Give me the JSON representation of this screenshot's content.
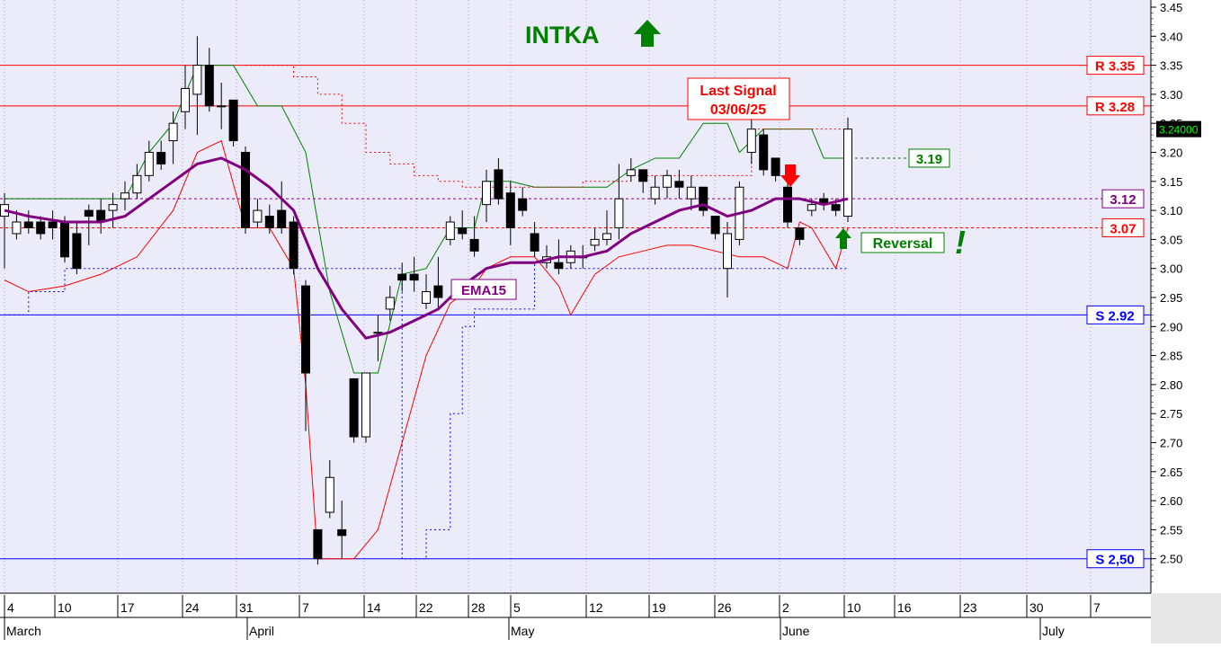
{
  "chart_data": {
    "type": "candlestick",
    "title": "INTKA",
    "trend_arrow": "up",
    "y_axis": {
      "ylim": [
        2.45,
        3.45
      ],
      "ticks": [
        "3.45",
        "3.40",
        "3.35",
        "3.30",
        "3.25",
        "3.20",
        "3.15",
        "3.10",
        "3.05",
        "3.00",
        "2.95",
        "2.90",
        "2.85",
        "2.80",
        "2.75",
        "2.70",
        "2.65",
        "2.60",
        "2.55",
        "2.50"
      ],
      "last_price_label": "3.24000"
    },
    "x_axis": {
      "day_ticks": [
        "4",
        "10",
        "17",
        "24",
        "31",
        "7",
        "14",
        "22",
        "28",
        "5",
        "12",
        "19",
        "26",
        "2",
        "10",
        "16",
        "23",
        "30",
        "7"
      ],
      "month_labels": [
        "March",
        "April",
        "May",
        "June",
        "July"
      ]
    },
    "levels": [
      {
        "label": "R 3.35",
        "value": 3.35,
        "kind": "resistance",
        "color": "#ff0000"
      },
      {
        "label": "R 3.28",
        "value": 3.28,
        "kind": "resistance",
        "color": "#ff0000"
      },
      {
        "label": "S 2.92",
        "value": 2.92,
        "kind": "support",
        "color": "#0000ff"
      },
      {
        "label": "S 2,50",
        "value": 2.5,
        "kind": "support",
        "color": "#0000ff"
      }
    ],
    "markers": [
      {
        "label": "3.19",
        "value": 3.19,
        "color": "#008000"
      },
      {
        "label": "3.12",
        "value": 3.12,
        "color": "#800080"
      },
      {
        "label": "3.07",
        "value": 3.07,
        "color": "#ff0000"
      }
    ],
    "annotations": {
      "last_signal": "Last Signal",
      "last_signal_date": "03/06/25",
      "ema_label": "EMA15",
      "reversal_label": "Reversal",
      "exclaim": "!"
    },
    "candles": [
      [
        0,
        3.09,
        3.11,
        3.0,
        3.13
      ],
      [
        1,
        3.06,
        3.08,
        3.05,
        3.1
      ],
      [
        2,
        3.08,
        3.07,
        3.06,
        3.1
      ],
      [
        3,
        3.08,
        3.06,
        3.05,
        3.09
      ],
      [
        4,
        3.08,
        3.07,
        3.05,
        3.1
      ],
      [
        5,
        3.08,
        3.02,
        3.01,
        3.09
      ],
      [
        6,
        3.06,
        3.0,
        2.99,
        3.08
      ],
      [
        7,
        3.1,
        3.09,
        3.04,
        3.11
      ],
      [
        8,
        3.1,
        3.08,
        3.06,
        3.12
      ],
      [
        9,
        3.1,
        3.11,
        3.07,
        3.13
      ],
      [
        10,
        3.12,
        3.13,
        3.1,
        3.15
      ],
      [
        11,
        3.13,
        3.16,
        3.12,
        3.18
      ],
      [
        12,
        3.16,
        3.2,
        3.15,
        3.22
      ],
      [
        13,
        3.2,
        3.18,
        3.17,
        3.22
      ],
      [
        14,
        3.22,
        3.25,
        3.18,
        3.27
      ],
      [
        15,
        3.27,
        3.31,
        3.24,
        3.35
      ],
      [
        16,
        3.3,
        3.35,
        3.23,
        3.4
      ],
      [
        17,
        3.35,
        3.28,
        3.27,
        3.38
      ],
      [
        18,
        3.28,
        3.28,
        3.24,
        3.32
      ],
      [
        19,
        3.29,
        3.22,
        3.21,
        3.29
      ],
      [
        20,
        3.2,
        3.07,
        3.06,
        3.21
      ],
      [
        21,
        3.08,
        3.1,
        3.07,
        3.12
      ],
      [
        22,
        3.09,
        3.07,
        3.06,
        3.11
      ],
      [
        23,
        3.1,
        3.07,
        3.06,
        3.15
      ],
      [
        24,
        3.08,
        3.0,
        2.99,
        3.09
      ],
      [
        25,
        2.97,
        2.82,
        2.72,
        2.98
      ],
      [
        26,
        2.55,
        2.5,
        2.49,
        2.55
      ],
      [
        27,
        2.58,
        2.64,
        2.57,
        2.67
      ],
      [
        28,
        2.55,
        2.54,
        2.5,
        2.6
      ],
      [
        29,
        2.81,
        2.71,
        2.7,
        2.81
      ],
      [
        30,
        2.71,
        2.82,
        2.7,
        2.82
      ],
      [
        31,
        2.89,
        2.89,
        2.84,
        2.92
      ],
      [
        32,
        2.93,
        2.95,
        2.91,
        2.97
      ],
      [
        33,
        2.99,
        2.98,
        2.96,
        3.01
      ],
      [
        34,
        2.99,
        2.98,
        2.96,
        3.02
      ],
      [
        35,
        2.94,
        2.96,
        2.93,
        2.99
      ],
      [
        36,
        2.97,
        2.95,
        2.93,
        3.02
      ],
      [
        37,
        3.05,
        3.08,
        3.04,
        3.09
      ],
      [
        38,
        3.07,
        3.06,
        3.05,
        3.1
      ],
      [
        39,
        3.05,
        3.03,
        3.02,
        3.09
      ],
      [
        40,
        3.11,
        3.15,
        3.08,
        3.17
      ],
      [
        41,
        3.17,
        3.12,
        3.11,
        3.19
      ],
      [
        42,
        3.13,
        3.07,
        3.04,
        3.15
      ],
      [
        43,
        3.12,
        3.1,
        3.09,
        3.14
      ],
      [
        44,
        3.06,
        3.03,
        3.02,
        3.08
      ],
      [
        45,
        3.01,
        3.02,
        3.0,
        3.04
      ],
      [
        46,
        3.01,
        3.0,
        2.99,
        3.05
      ],
      [
        47,
        3.01,
        3.03,
        3.0,
        3.04
      ],
      [
        48,
        3.02,
        3.02,
        3.0,
        3.04
      ],
      [
        49,
        3.04,
        3.05,
        3.03,
        3.07
      ],
      [
        50,
        3.05,
        3.06,
        3.04,
        3.1
      ],
      [
        51,
        3.07,
        3.12,
        3.05,
        3.18
      ],
      [
        52,
        3.16,
        3.17,
        3.15,
        3.19
      ],
      [
        53,
        3.17,
        3.15,
        3.13,
        3.17
      ],
      [
        54,
        3.12,
        3.14,
        3.11,
        3.16
      ],
      [
        55,
        3.14,
        3.16,
        3.12,
        3.17
      ],
      [
        56,
        3.15,
        3.14,
        3.12,
        3.17
      ],
      [
        57,
        3.12,
        3.14,
        3.1,
        3.16
      ],
      [
        58,
        3.14,
        3.1,
        3.09,
        3.14
      ],
      [
        59,
        3.09,
        3.06,
        3.05,
        3.09
      ],
      [
        60,
        3.0,
        3.06,
        2.95,
        3.08
      ],
      [
        61,
        3.05,
        3.14,
        3.04,
        3.15
      ],
      [
        62,
        3.2,
        3.24,
        3.18,
        3.26
      ],
      [
        63,
        3.23,
        3.17,
        3.16,
        3.24
      ],
      [
        64,
        3.19,
        3.16,
        3.15,
        3.19
      ],
      [
        65,
        3.14,
        3.08,
        3.07,
        3.17
      ],
      [
        66,
        3.07,
        3.05,
        3.04,
        3.07
      ],
      [
        67,
        3.1,
        3.11,
        3.09,
        3.12
      ],
      [
        68,
        3.12,
        3.11,
        3.1,
        3.13
      ],
      [
        69,
        3.11,
        3.1,
        3.09,
        3.12
      ],
      [
        70,
        3.09,
        3.24,
        3.08,
        3.26
      ]
    ],
    "ema15": [
      [
        0,
        3.1
      ],
      [
        2,
        3.09
      ],
      [
        5,
        3.08
      ],
      [
        8,
        3.08
      ],
      [
        10,
        3.09
      ],
      [
        12,
        3.12
      ],
      [
        14,
        3.15
      ],
      [
        16,
        3.18
      ],
      [
        18,
        3.19
      ],
      [
        20,
        3.17
      ],
      [
        22,
        3.14
      ],
      [
        24,
        3.1
      ],
      [
        26,
        3.0
      ],
      [
        28,
        2.93
      ],
      [
        30,
        2.88
      ],
      [
        32,
        2.89
      ],
      [
        34,
        2.91
      ],
      [
        36,
        2.93
      ],
      [
        38,
        2.97
      ],
      [
        40,
        3.0
      ],
      [
        42,
        3.01
      ],
      [
        44,
        3.01
      ],
      [
        46,
        3.02
      ],
      [
        48,
        3.02
      ],
      [
        50,
        3.03
      ],
      [
        52,
        3.06
      ],
      [
        54,
        3.08
      ],
      [
        56,
        3.1
      ],
      [
        58,
        3.11
      ],
      [
        60,
        3.09
      ],
      [
        62,
        3.1
      ],
      [
        64,
        3.12
      ],
      [
        66,
        3.12
      ],
      [
        68,
        3.11
      ],
      [
        70,
        3.12
      ]
    ],
    "upper_band": [
      [
        0,
        3.12
      ],
      [
        10,
        3.12
      ],
      [
        12,
        3.2
      ],
      [
        14,
        3.25
      ],
      [
        16,
        3.35
      ],
      [
        19,
        3.35
      ],
      [
        21,
        3.28
      ],
      [
        23,
        3.28
      ],
      [
        25,
        3.2
      ],
      [
        27,
        2.96
      ],
      [
        29,
        2.82
      ],
      [
        31,
        2.82
      ],
      [
        33,
        2.99
      ],
      [
        35,
        3.0
      ],
      [
        37,
        3.07
      ],
      [
        39,
        3.07
      ],
      [
        40,
        3.15
      ],
      [
        42,
        3.15
      ],
      [
        44,
        3.14
      ],
      [
        46,
        3.14
      ],
      [
        48,
        3.14
      ],
      [
        50,
        3.14
      ],
      [
        52,
        3.17
      ],
      [
        54,
        3.19
      ],
      [
        56,
        3.19
      ],
      [
        58,
        3.25
      ],
      [
        60,
        3.25
      ],
      [
        61,
        3.2
      ],
      [
        63,
        3.24
      ],
      [
        67,
        3.24
      ],
      [
        68,
        3.19
      ],
      [
        70,
        3.19
      ]
    ],
    "lower_band": [
      [
        0,
        2.98
      ],
      [
        2,
        2.96
      ],
      [
        5,
        2.97
      ],
      [
        8,
        2.99
      ],
      [
        11,
        3.02
      ],
      [
        14,
        3.1
      ],
      [
        16,
        3.2
      ],
      [
        18,
        3.22
      ],
      [
        20,
        3.07
      ],
      [
        22,
        3.07
      ],
      [
        24,
        3.0
      ],
      [
        25,
        2.8
      ],
      [
        26,
        2.5
      ],
      [
        29,
        2.5
      ],
      [
        31,
        2.55
      ],
      [
        33,
        2.7
      ],
      [
        35,
        2.85
      ],
      [
        37,
        2.94
      ],
      [
        39,
        2.97
      ],
      [
        40,
        3.0
      ],
      [
        42,
        3.02
      ],
      [
        44,
        3.02
      ],
      [
        46,
        2.97
      ],
      [
        47,
        2.92
      ],
      [
        49,
        2.99
      ],
      [
        51,
        3.02
      ],
      [
        53,
        3.03
      ],
      [
        55,
        3.04
      ],
      [
        57,
        3.04
      ],
      [
        59,
        3.03
      ],
      [
        61,
        3.02
      ],
      [
        63,
        3.02
      ],
      [
        65,
        3.0
      ],
      [
        66,
        3.08
      ],
      [
        67,
        3.07
      ],
      [
        69,
        3.0
      ],
      [
        70,
        3.07
      ]
    ],
    "red_dotted": [
      [
        20,
        3.35
      ],
      [
        22,
        3.35
      ],
      [
        24,
        3.33
      ],
      [
        26,
        3.3
      ],
      [
        28,
        3.25
      ],
      [
        30,
        3.2
      ],
      [
        32,
        3.18
      ],
      [
        34,
        3.16
      ],
      [
        36,
        3.15
      ],
      [
        38,
        3.14
      ],
      [
        40,
        3.14
      ],
      [
        44,
        3.14
      ],
      [
        48,
        3.15
      ],
      [
        52,
        3.16
      ],
      [
        56,
        3.16
      ],
      [
        60,
        3.16
      ],
      [
        62,
        3.24
      ],
      [
        66,
        3.24
      ],
      [
        70,
        3.25
      ]
    ],
    "blue_dotted": [
      [
        0,
        2.92
      ],
      [
        2,
        2.96
      ],
      [
        5,
        3.0
      ],
      [
        20,
        3.0
      ],
      [
        24,
        3.0
      ],
      [
        33,
        2.5
      ],
      [
        34,
        2.5
      ],
      [
        35,
        2.55
      ],
      [
        36,
        2.55
      ],
      [
        37,
        2.75
      ],
      [
        38,
        2.9
      ],
      [
        39,
        2.93
      ],
      [
        42,
        2.93
      ],
      [
        44,
        3.01
      ],
      [
        46,
        3.0
      ],
      [
        50,
        3.0
      ],
      [
        54,
        3.0
      ],
      [
        58,
        3.0
      ],
      [
        62,
        3.0
      ],
      [
        66,
        3.0
      ],
      [
        70,
        3.0
      ]
    ]
  }
}
